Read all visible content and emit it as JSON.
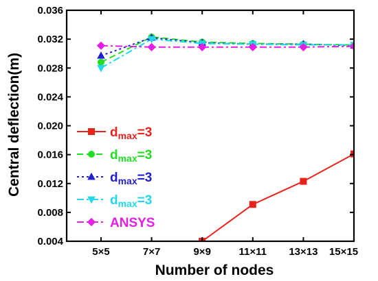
{
  "chart_data": {
    "type": "line",
    "categories": [
      "5×5",
      "7×7",
      "9×9",
      "11×11",
      "13×13",
      "15×15"
    ],
    "xlabel": "Number of nodes",
    "ylabel": "Central deflection(m)",
    "ylim": [
      0.004,
      0.036
    ],
    "yticks": [
      "0.004",
      "0.008",
      "0.012",
      "0.016",
      "0.020",
      "0.024",
      "0.028",
      "0.032",
      "0.036"
    ],
    "legend_position": "lower-left",
    "series": [
      {
        "name_main": "d",
        "name_sub": "max",
        "name_tail": "=3",
        "color": "#e8231d",
        "marker": "square",
        "dash": "solid",
        "values": [
          null,
          null,
          0.004,
          0.0091,
          0.0123,
          0.0161
        ]
      },
      {
        "name_main": "d",
        "name_sub": "max",
        "name_tail": "=3",
        "color": "#22dd22",
        "marker": "circle",
        "dash": "dash",
        "values": [
          0.0288,
          0.0323,
          0.0316,
          0.0314,
          0.0313,
          0.0312
        ]
      },
      {
        "name_main": "d",
        "name_sub": "max",
        "name_tail": "=3",
        "color": "#1f1fd0",
        "marker": "triangle-up",
        "dash": "dot",
        "values": [
          0.0297,
          0.0322,
          0.0315,
          0.0313,
          0.0313,
          0.0311
        ]
      },
      {
        "name_main": "d",
        "name_sub": "max",
        "name_tail": "=3",
        "color": "#22d8e8",
        "marker": "triangle-down",
        "dash": "dashdot",
        "values": [
          0.028,
          0.032,
          0.0314,
          0.0313,
          0.0312,
          0.0312
        ]
      },
      {
        "name_main": "ANSYS",
        "name_sub": "",
        "name_tail": "",
        "color": "#e51ee5",
        "marker": "diamond",
        "dash": "dashdot",
        "values": [
          0.0311,
          0.0309,
          0.0309,
          0.0309,
          0.0309,
          0.031
        ]
      }
    ]
  }
}
